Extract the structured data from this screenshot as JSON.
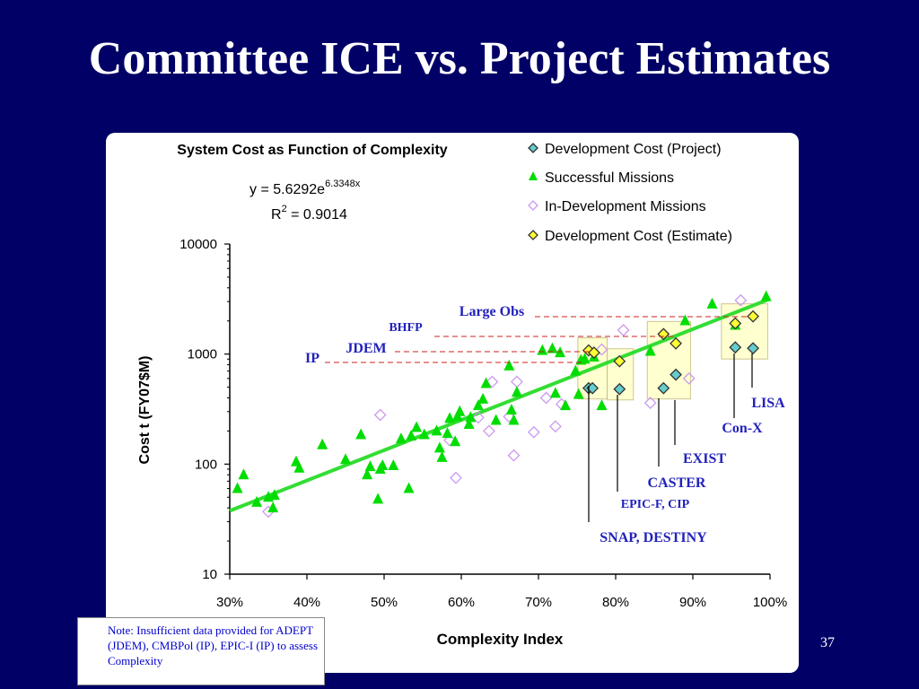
{
  "slide": {
    "title": "Committee ICE vs. Project Estimates",
    "note": "Note: Insufficient data provided for ADEPT (JDEM), CMBPol (IP), EPIC-I (IP) to assess Complexity",
    "page_number": "37"
  },
  "chart_data": {
    "type": "scatter",
    "title": "System Cost as Function of Complexity",
    "xlabel": "Complexity Index",
    "ylabel": "Cost t (FY07$M)",
    "xlim": [
      0.3,
      1.0
    ],
    "ylim": [
      10,
      10000
    ],
    "yscale": "log",
    "x_ticks": [
      "30%",
      "40%",
      "50%",
      "60%",
      "70%",
      "80%",
      "90%",
      "100%"
    ],
    "y_ticks": [
      "10",
      "100",
      "1000",
      "10000"
    ],
    "legend_position": "top-right",
    "fit": {
      "equation": "y = 5.6292e",
      "exponent": "6.3348x",
      "r2_label": "R",
      "r2_sup": "2",
      "r2_value": " = 0.9014",
      "a": 5.6292,
      "b": 6.3348,
      "color": "#33dd33"
    },
    "series": [
      {
        "name": "Development Cost (Project)",
        "marker": "diamond",
        "color": "#66cccc",
        "points": [
          [
            0.765,
            490
          ],
          [
            0.77,
            490
          ],
          [
            0.805,
            480
          ],
          [
            0.862,
            490
          ],
          [
            0.878,
            650
          ],
          [
            0.955,
            1150
          ],
          [
            0.978,
            1130
          ]
        ]
      },
      {
        "name": "Successful Missions",
        "marker": "triangle",
        "color": "#00dd00",
        "points": [
          [
            0.31,
            60
          ],
          [
            0.318,
            80
          ],
          [
            0.335,
            45
          ],
          [
            0.35,
            50
          ],
          [
            0.356,
            40
          ],
          [
            0.358,
            52
          ],
          [
            0.386,
            105
          ],
          [
            0.39,
            92
          ],
          [
            0.42,
            150
          ],
          [
            0.45,
            110
          ],
          [
            0.47,
            185
          ],
          [
            0.478,
            80
          ],
          [
            0.482,
            95
          ],
          [
            0.492,
            48
          ],
          [
            0.495,
            90
          ],
          [
            0.498,
            97
          ],
          [
            0.512,
            97
          ],
          [
            0.522,
            170
          ],
          [
            0.532,
            60
          ],
          [
            0.535,
            180
          ],
          [
            0.542,
            215
          ],
          [
            0.552,
            185
          ],
          [
            0.568,
            200
          ],
          [
            0.572,
            140
          ],
          [
            0.575,
            115
          ],
          [
            0.582,
            190
          ],
          [
            0.585,
            260
          ],
          [
            0.592,
            160
          ],
          [
            0.595,
            270
          ],
          [
            0.598,
            300
          ],
          [
            0.61,
            230
          ],
          [
            0.612,
            265
          ],
          [
            0.622,
            340
          ],
          [
            0.628,
            390
          ],
          [
            0.632,
            540
          ],
          [
            0.645,
            250
          ],
          [
            0.662,
            780
          ],
          [
            0.665,
            310
          ],
          [
            0.668,
            250
          ],
          [
            0.672,
            450
          ],
          [
            0.705,
            1080
          ],
          [
            0.718,
            1120
          ],
          [
            0.722,
            440
          ],
          [
            0.728,
            1030
          ],
          [
            0.735,
            340
          ],
          [
            0.748,
            700
          ],
          [
            0.752,
            430
          ],
          [
            0.755,
            880
          ],
          [
            0.76,
            900
          ],
          [
            0.772,
            940
          ],
          [
            0.782,
            340
          ],
          [
            0.845,
            1060
          ],
          [
            0.89,
            2010
          ],
          [
            0.925,
            2850
          ],
          [
            0.955,
            1830
          ],
          [
            0.995,
            3330
          ]
        ]
      },
      {
        "name": "In-Development Missions",
        "marker": "diamond",
        "color": "#cc99ee",
        "points": [
          [
            0.35,
            37
          ],
          [
            0.495,
            280
          ],
          [
            0.585,
            165
          ],
          [
            0.593,
            75
          ],
          [
            0.622,
            265
          ],
          [
            0.636,
            200
          ],
          [
            0.64,
            560
          ],
          [
            0.662,
            270
          ],
          [
            0.668,
            120
          ],
          [
            0.672,
            560
          ],
          [
            0.694,
            195
          ],
          [
            0.71,
            400
          ],
          [
            0.722,
            220
          ],
          [
            0.73,
            350
          ],
          [
            0.782,
            1100
          ],
          [
            0.81,
            1650
          ],
          [
            0.845,
            360
          ],
          [
            0.895,
            600
          ],
          [
            0.962,
            3080
          ]
        ]
      },
      {
        "name": "Development Cost (Estimate)",
        "marker": "diamond",
        "color": "#ffff33",
        "points": [
          [
            0.765,
            1080
          ],
          [
            0.772,
            1030
          ],
          [
            0.805,
            860
          ],
          [
            0.862,
            1520
          ],
          [
            0.878,
            1250
          ],
          [
            0.955,
            1900
          ],
          [
            0.978,
            2200
          ]
        ]
      }
    ],
    "annotations": [
      {
        "label": "Large Obs",
        "size": 16,
        "bold": true
      },
      {
        "label": "BHFP",
        "size": 14,
        "bold": true
      },
      {
        "label": "JDEM",
        "size": 16,
        "bold": true
      },
      {
        "label": "IP",
        "size": 16,
        "bold": true
      },
      {
        "label": "LISA",
        "size": 16,
        "bold": true
      },
      {
        "label": "Con-X",
        "size": 16,
        "bold": true
      },
      {
        "label": "EXIST",
        "size": 16,
        "bold": true
      },
      {
        "label": "CASTER",
        "size": 16,
        "bold": true
      },
      {
        "label": "EPIC-F, CIP",
        "size": 14,
        "bold": true
      },
      {
        "label": "SNAP, DESTINY",
        "size": 16,
        "bold": true
      }
    ]
  }
}
